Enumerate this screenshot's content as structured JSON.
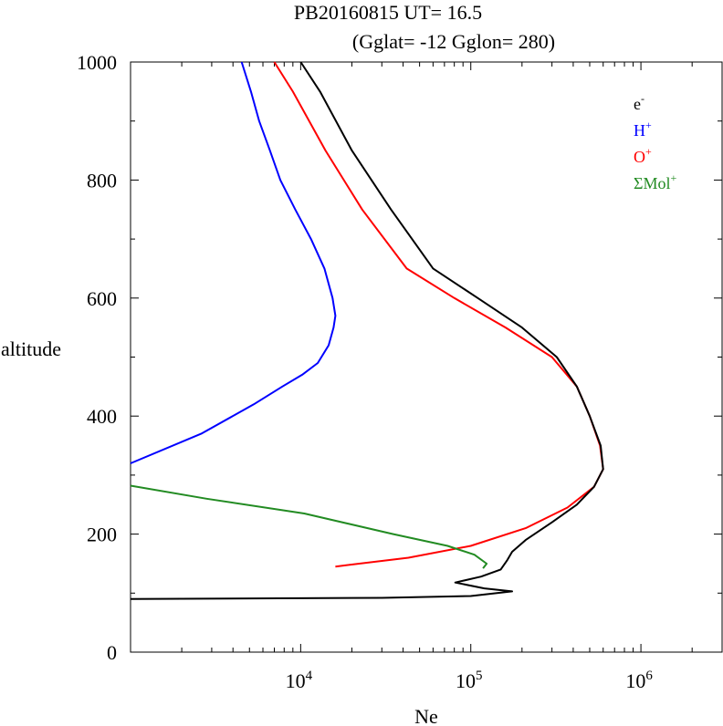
{
  "chart_data": {
    "type": "line",
    "title_line1": "PB20160815   UT=  16.5",
    "title_line2": "(Gglat= -12   Gglon=  280)",
    "xlabel": "Ne",
    "ylabel": "altitude",
    "x_scale": "log",
    "xlim": [
      1000,
      3000000
    ],
    "ylim": [
      0,
      1000
    ],
    "x_ticks": [
      {
        "value": 10000,
        "base": "10",
        "exp": "4"
      },
      {
        "value": 100000,
        "base": "10",
        "exp": "5"
      },
      {
        "value": 1000000,
        "base": "10",
        "exp": "6"
      }
    ],
    "y_ticks": [
      {
        "value": 0,
        "label": "0"
      },
      {
        "value": 200,
        "label": "200"
      },
      {
        "value": 400,
        "label": "400"
      },
      {
        "value": 600,
        "label": "600"
      },
      {
        "value": 800,
        "label": "800"
      },
      {
        "value": 1000,
        "label": "1000"
      }
    ],
    "legend_position": "top-right",
    "series": [
      {
        "name": "e",
        "sup": "-",
        "color": "#000000",
        "points": [
          [
            1000,
            90
          ],
          [
            30000,
            92
          ],
          [
            100000,
            95
          ],
          [
            175000,
            103
          ],
          [
            120000,
            108
          ],
          [
            81000,
            118
          ],
          [
            115000,
            128
          ],
          [
            150000,
            140
          ],
          [
            163000,
            155
          ],
          [
            175000,
            170
          ],
          [
            210000,
            190
          ],
          [
            300000,
            220
          ],
          [
            420000,
            250
          ],
          [
            530000,
            280
          ],
          [
            600000,
            310
          ],
          [
            580000,
            350
          ],
          [
            500000,
            400
          ],
          [
            420000,
            450
          ],
          [
            320000,
            500
          ],
          [
            200000,
            550
          ],
          [
            110000,
            600
          ],
          [
            60000,
            650
          ],
          [
            34000,
            750
          ],
          [
            20000,
            850
          ],
          [
            13000,
            950
          ],
          [
            10000,
            1000
          ]
        ]
      },
      {
        "name": "H",
        "sup": "+",
        "color": "#0000ff",
        "points": [
          [
            1000,
            320
          ],
          [
            2600,
            370
          ],
          [
            5300,
            420
          ],
          [
            7800,
            450
          ],
          [
            10200,
            470
          ],
          [
            12600,
            490
          ],
          [
            14600,
            520
          ],
          [
            15600,
            550
          ],
          [
            16000,
            570
          ],
          [
            15400,
            600
          ],
          [
            13800,
            650
          ],
          [
            11500,
            700
          ],
          [
            9300,
            750
          ],
          [
            7600,
            800
          ],
          [
            6600,
            850
          ],
          [
            5700,
            900
          ],
          [
            5100,
            950
          ],
          [
            4500,
            1000
          ]
        ]
      },
      {
        "name": "O",
        "sup": "+",
        "color": "#ff0000",
        "points": [
          [
            16000,
            145
          ],
          [
            43000,
            160
          ],
          [
            100000,
            180
          ],
          [
            210000,
            210
          ],
          [
            370000,
            245
          ],
          [
            530000,
            280
          ],
          [
            600000,
            310
          ],
          [
            575000,
            350
          ],
          [
            500000,
            400
          ],
          [
            420000,
            450
          ],
          [
            300000,
            500
          ],
          [
            160000,
            550
          ],
          [
            80000,
            600
          ],
          [
            42000,
            650
          ],
          [
            23000,
            750
          ],
          [
            14000,
            850
          ],
          [
            9000,
            950
          ],
          [
            7000,
            1000
          ]
        ]
      },
      {
        "name": "ΣMol",
        "sup": "+",
        "color": "#228b22",
        "points": [
          [
            1000,
            282
          ],
          [
            2800,
            260
          ],
          [
            10500,
            235
          ],
          [
            35000,
            200
          ],
          [
            73000,
            180
          ],
          [
            105000,
            165
          ],
          [
            124000,
            150
          ],
          [
            118000,
            142
          ]
        ]
      }
    ]
  }
}
